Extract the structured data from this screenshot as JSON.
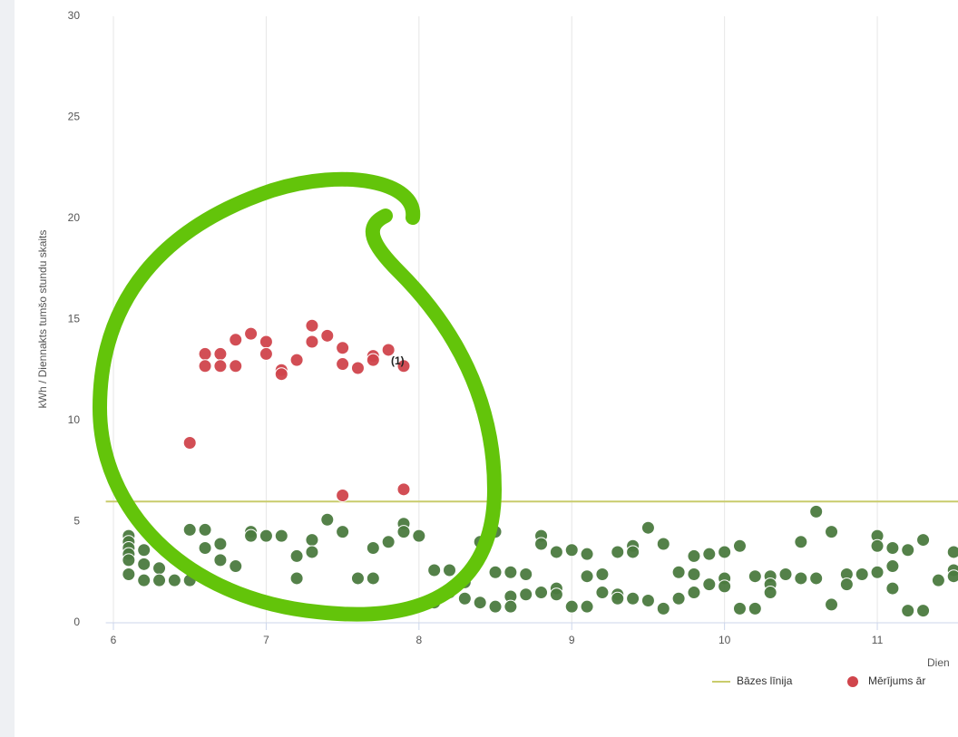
{
  "chart_data": {
    "type": "scatter",
    "y_label": "kWh / Diennakts tumšo stundu skaits",
    "x_label": "Dien",
    "xlim": [
      5.95,
      11.53
    ],
    "xticks": [
      6,
      7,
      8,
      9,
      10,
      11
    ],
    "ylim": [
      0,
      30
    ],
    "yticks": [
      0,
      5,
      10,
      15,
      20,
      25,
      30
    ],
    "grid": true,
    "baseline": {
      "name": "Bāzes līnija",
      "value": 6,
      "color": "#c9cc6c"
    },
    "annotations": [
      {
        "text": "(1)"
      }
    ],
    "series": [
      {
        "color": "#4b7a3f",
        "x": [
          6.1,
          6.1,
          6.1,
          6.1,
          6.1,
          6.1,
          6.2,
          6.2,
          6.2,
          6.3,
          6.3,
          6.4,
          6.5,
          6.5,
          6.6,
          6.6,
          6.7,
          6.7,
          6.8,
          6.9,
          6.9,
          7.0,
          7.1,
          7.2,
          7.2,
          7.3,
          7.3,
          7.4,
          7.5,
          7.6,
          7.7,
          7.7,
          7.8,
          7.9,
          7.9,
          8.0,
          8.1,
          8.1,
          8.2,
          8.2,
          8.3,
          8.3,
          8.4,
          8.4,
          8.5,
          8.5,
          8.5,
          8.6,
          8.6,
          8.6,
          8.7,
          8.7,
          8.8,
          8.8,
          8.8,
          8.9,
          8.9,
          8.9,
          9.0,
          9.0,
          9.1,
          9.1,
          9.1,
          9.2,
          9.2,
          9.3,
          9.3,
          9.3,
          9.4,
          9.4,
          9.4,
          9.5,
          9.5,
          9.6,
          9.6,
          9.7,
          9.7,
          9.8,
          9.8,
          9.8,
          9.9,
          9.9,
          10.0,
          10.0,
          10.0,
          10.1,
          10.1,
          10.2,
          10.2,
          10.3,
          10.3,
          10.3,
          10.4,
          10.5,
          10.5,
          10.6,
          10.6,
          10.7,
          10.7,
          10.8,
          10.8,
          10.9,
          11.0,
          11.0,
          11.0,
          11.1,
          11.1,
          11.1,
          11.2,
          11.2,
          11.3,
          11.3,
          11.4,
          11.5,
          11.5,
          11.5
        ],
        "values": [
          4.3,
          4.0,
          3.7,
          3.4,
          3.1,
          2.4,
          3.6,
          2.9,
          2.1,
          2.7,
          2.1,
          2.1,
          4.6,
          2.1,
          4.6,
          3.7,
          3.9,
          3.1,
          2.8,
          4.5,
          4.3,
          4.3,
          4.3,
          3.3,
          2.2,
          4.1,
          3.5,
          5.1,
          4.5,
          2.2,
          3.7,
          2.2,
          4.0,
          4.9,
          4.5,
          4.3,
          2.6,
          1.0,
          2.6,
          1.5,
          2.0,
          1.2,
          4.0,
          1.0,
          4.5,
          2.5,
          0.8,
          2.5,
          1.3,
          0.8,
          2.4,
          1.4,
          4.3,
          3.9,
          1.5,
          3.5,
          1.7,
          1.4,
          3.6,
          0.8,
          3.4,
          2.3,
          0.8,
          2.4,
          1.5,
          3.5,
          1.4,
          1.2,
          3.8,
          3.5,
          1.2,
          4.7,
          1.1,
          3.9,
          0.7,
          2.5,
          1.2,
          3.3,
          2.4,
          1.5,
          3.4,
          1.9,
          3.5,
          2.2,
          1.8,
          3.8,
          0.7,
          2.3,
          0.7,
          2.3,
          1.9,
          1.5,
          2.4,
          4.0,
          2.2,
          5.5,
          2.2,
          4.5,
          0.9,
          2.4,
          1.9,
          2.4,
          4.3,
          3.8,
          2.5,
          3.7,
          2.8,
          1.7,
          3.6,
          0.6,
          4.1,
          0.6,
          2.1,
          3.5,
          2.6,
          2.3
        ]
      },
      {
        "name": "Mērījums ār",
        "color": "#d0454c",
        "x": [
          6.5,
          6.6,
          6.6,
          6.7,
          6.7,
          6.8,
          6.8,
          6.9,
          7.0,
          7.0,
          7.1,
          7.1,
          7.2,
          7.3,
          7.3,
          7.4,
          7.5,
          7.5,
          7.6,
          7.7,
          7.7,
          7.8,
          7.9,
          7.5,
          7.9
        ],
        "values": [
          8.9,
          13.3,
          12.7,
          13.3,
          12.7,
          14.0,
          12.7,
          14.3,
          13.9,
          13.3,
          12.5,
          12.3,
          13.0,
          14.7,
          13.9,
          14.2,
          13.6,
          12.8,
          12.6,
          13.2,
          13.0,
          13.5,
          12.7,
          6.3,
          6.6
        ]
      }
    ]
  }
}
